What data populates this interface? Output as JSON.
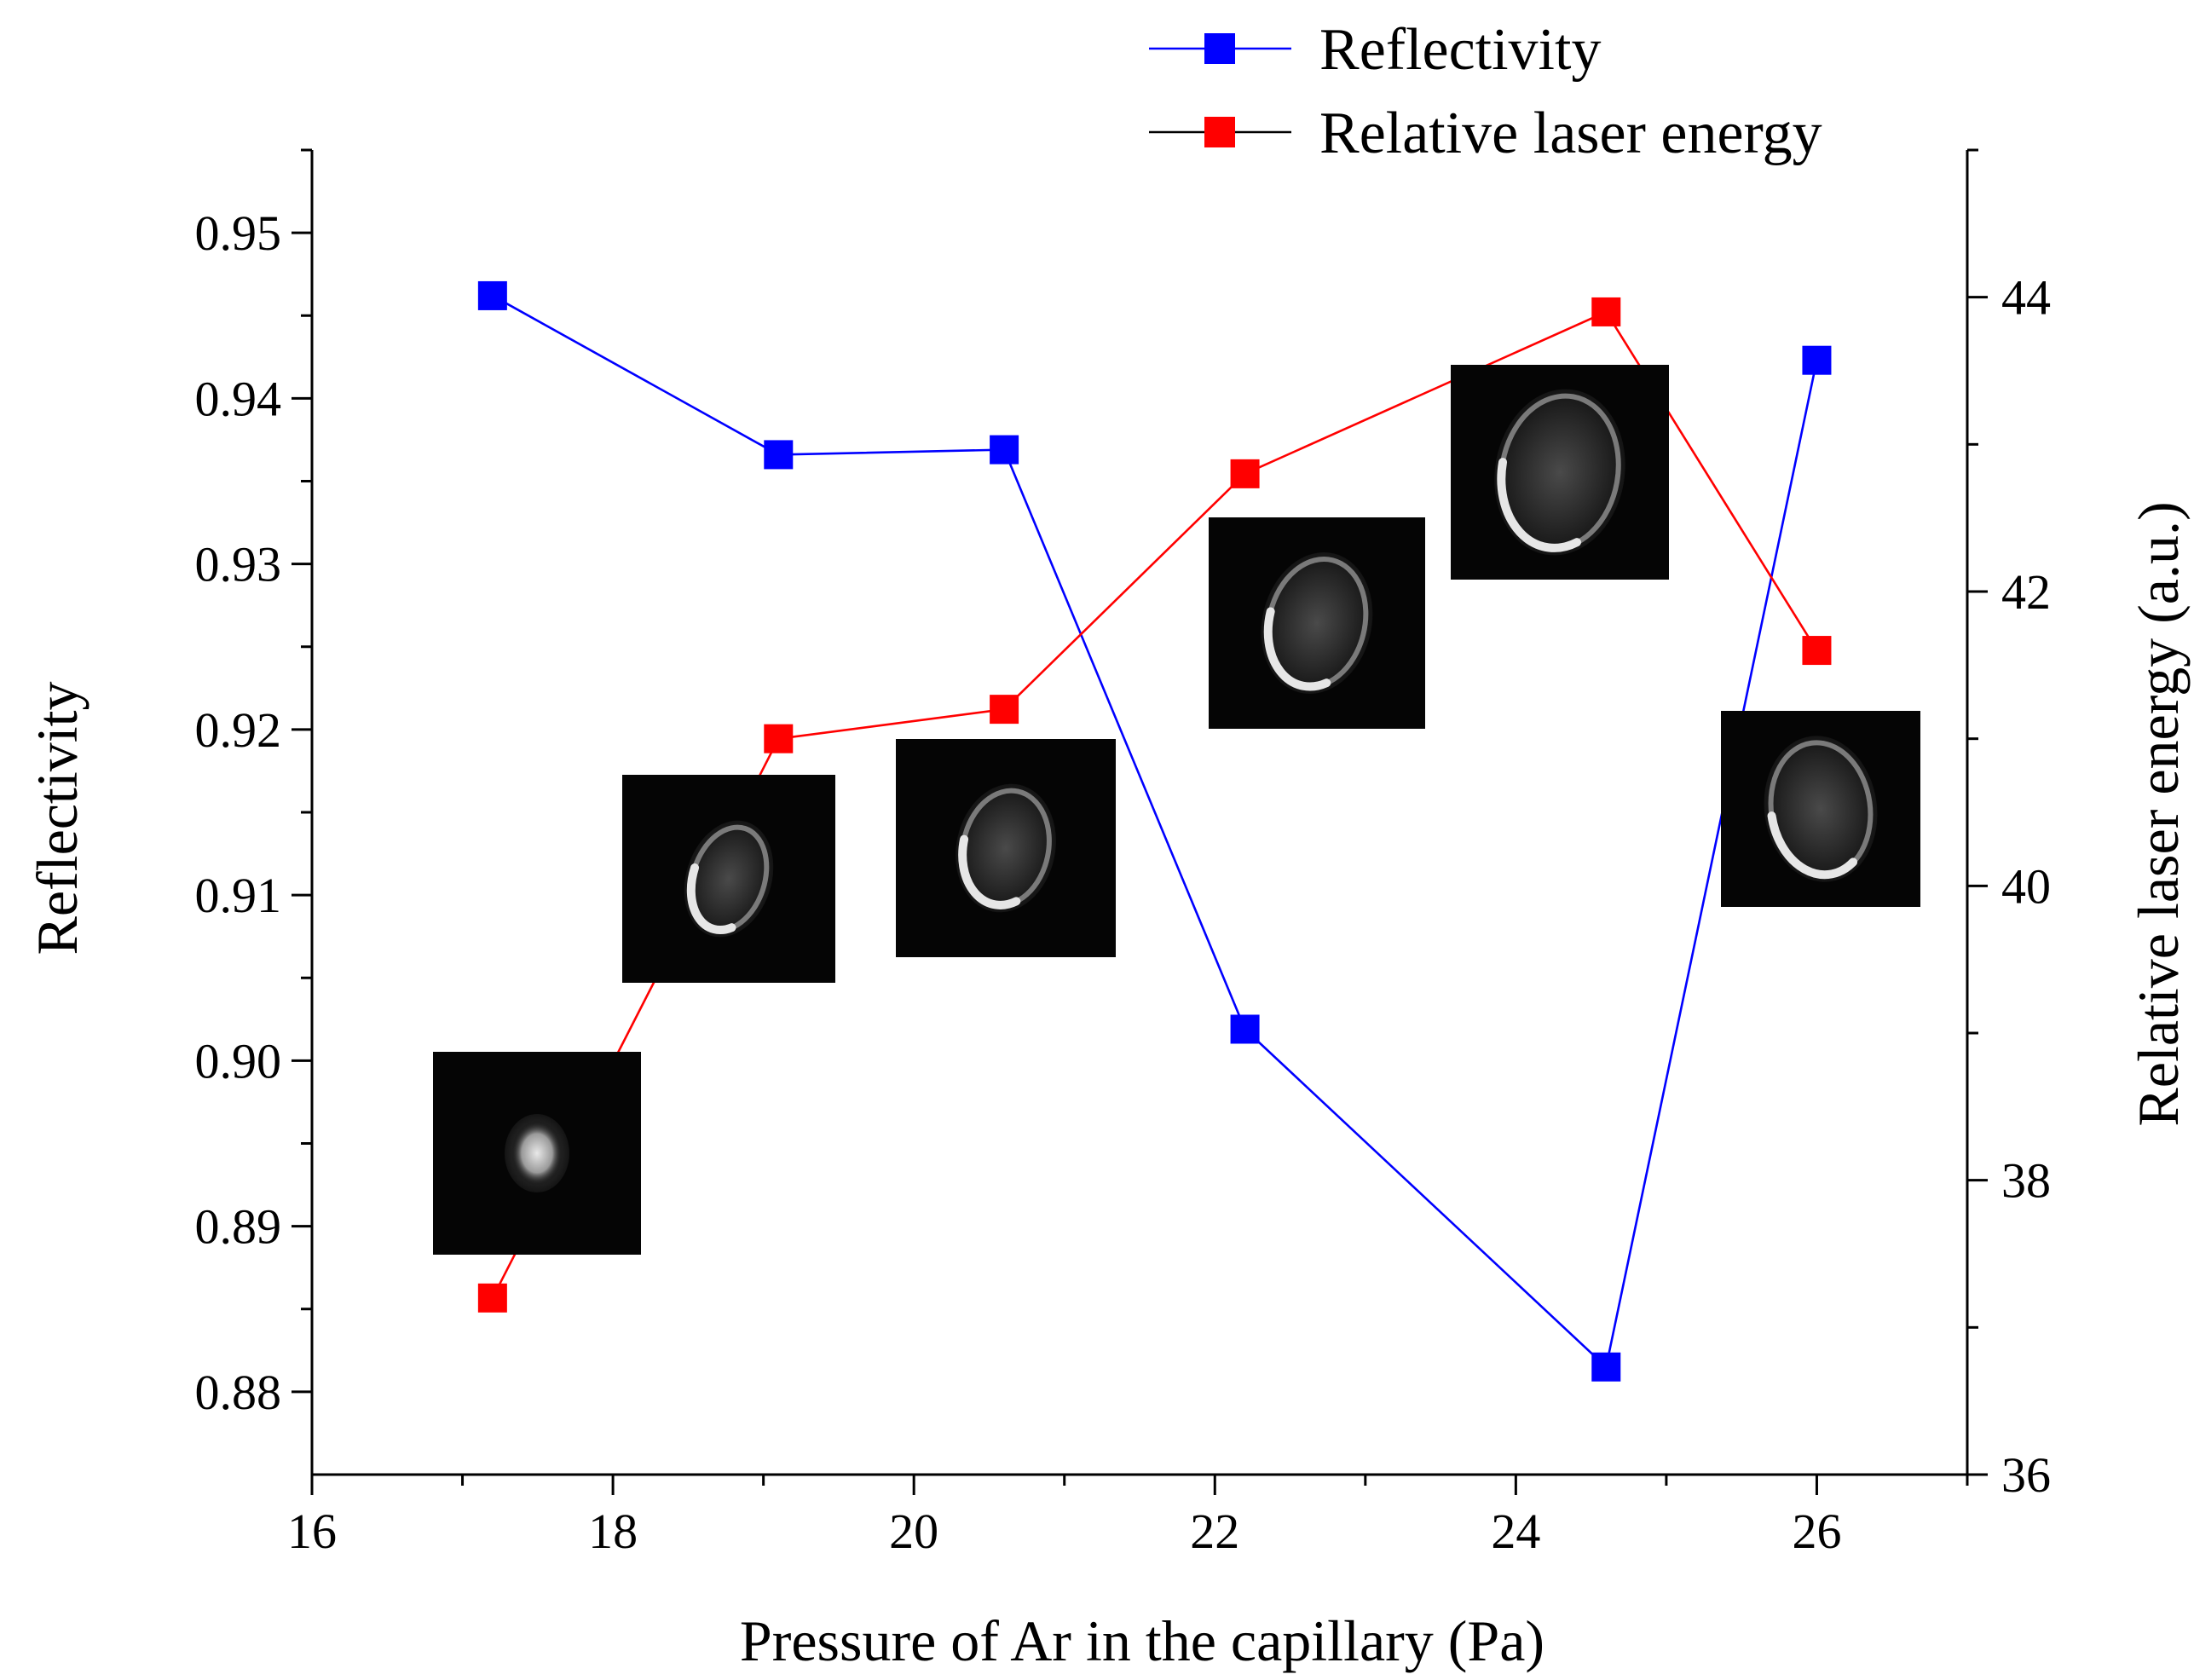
{
  "chart_data": {
    "type": "line",
    "xlabel": "Pressure of Ar in the capillary (Pa)",
    "ylabel": "Reflectivity",
    "y2label": "Relative laser energy (a.u.)",
    "xlim": [
      16,
      27
    ],
    "ylim": [
      0.875,
      0.955
    ],
    "y2lim": [
      36,
      45
    ],
    "xticks": [
      16,
      18,
      20,
      22,
      24,
      26
    ],
    "xtick_labels": [
      "16",
      "18",
      "20",
      "22",
      "24",
      "26"
    ],
    "yticks": [
      0.88,
      0.89,
      0.9,
      0.91,
      0.92,
      0.93,
      0.94,
      0.95
    ],
    "ytick_labels": [
      "0.88",
      "0.89",
      "0.90",
      "0.91",
      "0.92",
      "0.93",
      "0.94",
      "0.95"
    ],
    "y2ticks": [
      36,
      38,
      40,
      42,
      44
    ],
    "y2tick_labels": [
      "36",
      "38",
      "40",
      "42",
      "44"
    ],
    "legend_position": "top-right",
    "series": [
      {
        "name": "Reflectivity",
        "axis": "left",
        "color": "#0000ff",
        "marker": "square",
        "x": [
          17.2,
          19.1,
          20.6,
          22.2,
          24.6,
          26.0
        ],
        "values": [
          0.9462,
          0.9366,
          0.9369,
          0.9019,
          0.8815,
          0.9423
        ]
      },
      {
        "name": "Relative laser energy",
        "axis": "right",
        "color": "#ff0000",
        "legend_line_color": "#000000",
        "marker": "square",
        "x": [
          17.2,
          19.1,
          20.6,
          22.2,
          24.6,
          26.0
        ],
        "values": [
          37.2,
          41.0,
          41.2,
          42.8,
          43.9,
          41.6
        ]
      }
    ],
    "inset_images": [
      {
        "label": "beam-profile-17.2-pa",
        "at_pressure": 17.2
      },
      {
        "label": "beam-profile-19.1-pa",
        "at_pressure": 19.1
      },
      {
        "label": "beam-profile-20.6-pa",
        "at_pressure": 20.6
      },
      {
        "label": "beam-profile-22.2-pa",
        "at_pressure": 22.2
      },
      {
        "label": "beam-profile-24.6-pa",
        "at_pressure": 24.6
      },
      {
        "label": "beam-profile-26.0-pa",
        "at_pressure": 26.0
      }
    ]
  }
}
